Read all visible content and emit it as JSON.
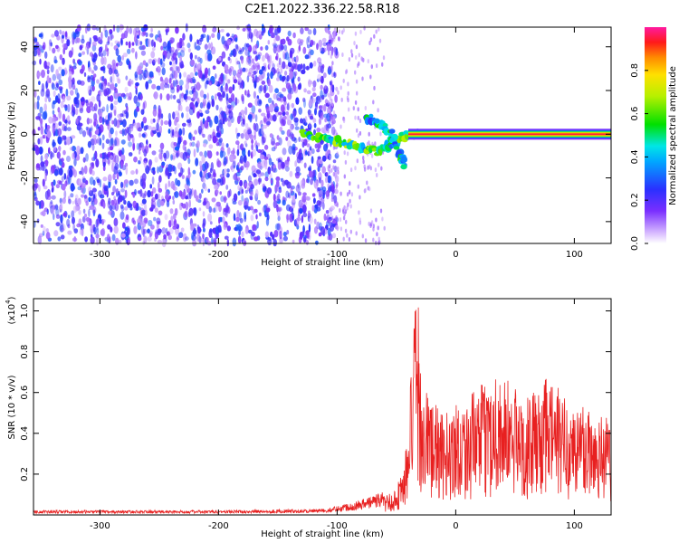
{
  "title": "C2E1.2022.336.22.58.R18",
  "chart_data": [
    {
      "type": "heatmap",
      "xlabel": "Height of straight line (km)",
      "ylabel": "Frequency (Hz)",
      "xlim": [
        -356,
        131
      ],
      "ylim": [
        -50,
        49
      ],
      "x_ticks": [
        "-300",
        "-200",
        "-100",
        "0",
        "100"
      ],
      "y_ticks": [
        "-40",
        "-20",
        "0",
        "20",
        "40"
      ],
      "colorbar": {
        "label": "Normalized spectral amplitude",
        "range": [
          0.0,
          1.0
        ],
        "ticks": [
          "0.0",
          "0.2",
          "0.4",
          "0.6",
          "0.8"
        ]
      },
      "features": [
        {
          "name": "noise",
          "x_range": [
            -356,
            -100
          ],
          "y_range": [
            -50,
            49
          ],
          "amplitude": 0.25
        },
        {
          "name": "meteor trail",
          "points": [
            [
              -128,
              0
            ],
            [
              -110,
              -2
            ],
            [
              -95,
              -4
            ],
            [
              -80,
              -6
            ],
            [
              -65,
              -8
            ],
            [
              -55,
              -5
            ],
            [
              -45,
              -1
            ],
            [
              -30,
              0
            ]
          ],
          "amplitude": 0.6
        },
        {
          "name": "upper branch",
          "points": [
            [
              -75,
              8
            ],
            [
              -65,
              5
            ],
            [
              -55,
              0
            ],
            [
              -48,
              -8
            ],
            [
              -43,
              -14
            ]
          ],
          "amplitude": 0.5
        },
        {
          "name": "steady echo",
          "x_range": [
            -40,
            131
          ],
          "y_center": 0,
          "amplitude": 0.95
        }
      ]
    },
    {
      "type": "line",
      "xlabel": "Height of straight line (km)",
      "ylabel": "SNR (10 * v/v)",
      "y_multiplier": "(x10",
      "y_multiplier_exp": "4",
      "y_multiplier_close": ")",
      "xlim": [
        -356,
        131
      ],
      "ylim": [
        0,
        1.06
      ],
      "x_ticks": [
        "-300",
        "-200",
        "-100",
        "0",
        "100"
      ],
      "y_ticks": [
        "0.2",
        "0.4",
        "0.6",
        "0.8",
        "1.0"
      ],
      "line_color": "#e82020",
      "envelope": {
        "x": [
          -356,
          -200,
          -110,
          -100,
          -80,
          -60,
          -50,
          -45,
          -40,
          -38,
          -35,
          -33,
          -30,
          -25,
          -20,
          -10,
          0,
          10,
          20,
          30,
          35,
          40,
          50,
          60,
          70,
          80,
          90,
          100,
          110,
          120,
          131
        ],
        "y": [
          0.015,
          0.015,
          0.02,
          0.03,
          0.05,
          0.08,
          0.12,
          0.2,
          0.35,
          0.6,
          0.85,
          1.06,
          0.7,
          0.55,
          0.5,
          0.42,
          0.5,
          0.5,
          0.55,
          0.58,
          0.65,
          0.6,
          0.55,
          0.5,
          0.55,
          0.6,
          0.52,
          0.48,
          0.5,
          0.45,
          0.42
        ]
      }
    }
  ]
}
